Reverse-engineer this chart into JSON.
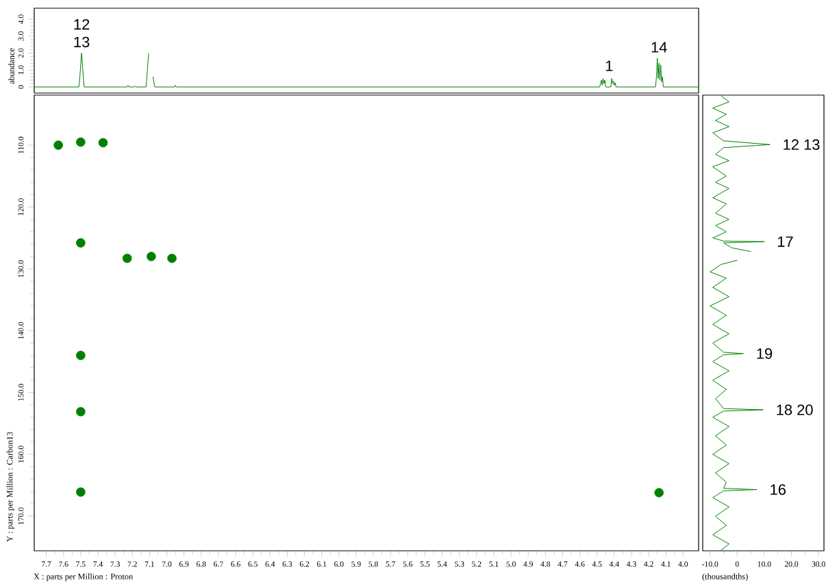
{
  "chart_data": [
    {
      "type": "line",
      "ylabel": "abundance",
      "xlim": [
        7.77,
        3.91
      ],
      "ylim": [
        -0.36,
        4.65
      ],
      "tick_labels": "y",
      "yticks": [
        {
          "value": 0,
          "label": "0"
        },
        {
          "value": 1,
          "label": "1.0"
        },
        {
          "value": 2,
          "label": "2.0"
        },
        {
          "value": 3,
          "label": "3.0"
        },
        {
          "value": 4,
          "label": "4.0"
        }
      ],
      "series": [
        {
          "color": "#008000",
          "x": [
            7.77,
            7.51,
            7.505,
            7.495,
            7.485,
            7.48,
            7.23,
            7.225,
            7.22,
            7.19,
            7.185,
            7.18,
            7.12,
            7.105,
            7.095,
            7.085,
            7.08,
            7.07,
            6.955,
            6.95,
            6.945,
            4.485,
            4.475,
            4.47,
            4.465,
            4.46,
            4.455,
            4.45,
            4.42,
            4.415,
            4.41,
            4.405,
            4.4,
            4.395,
            4.39,
            4.16,
            4.155,
            4.15,
            4.145,
            4.14,
            4.135,
            4.13,
            4.125,
            4.12,
            4.115,
            3.91
          ],
          "values": [
            0,
            0,
            0.6,
            2.0,
            0.6,
            0,
            0,
            0.1,
            0,
            0,
            0.05,
            0,
            0,
            2.0,
            null,
            null,
            0.6,
            0,
            0,
            0.1,
            0,
            0,
            0.4,
            0.1,
            0.5,
            0.2,
            0.4,
            0,
            0,
            0.5,
            0.2,
            0.35,
            0.1,
            0.25,
            0,
            0,
            0.6,
            1.7,
            0.5,
            1.4,
            0.4,
            1.3,
            0.3,
            0.6,
            0,
            0
          ]
        }
      ],
      "annotations": [
        {
          "text": "12",
          "x": 7.495,
          "y": 2.0
        },
        {
          "text": "13",
          "x": 7.495,
          "y": 2.0
        },
        {
          "text": "1",
          "x": 4.43,
          "y": 0.6
        },
        {
          "text": "14",
          "x": 4.14,
          "y": 1.7
        }
      ]
    },
    {
      "type": "scatter",
      "xlabel": "X : parts per Million : Proton",
      "ylabel": "Y : parts per Million : Carbon13",
      "xlim": [
        7.77,
        3.91
      ],
      "ylim": [
        175.6,
        101.9
      ],
      "marker": "circle",
      "xticks": [
        7.7,
        7.6,
        7.5,
        7.4,
        7.3,
        7.2,
        7.1,
        {
          "value": 7.0,
          "label": "7.0"
        },
        6.9,
        6.8,
        6.7,
        6.6,
        6.5,
        6.4,
        6.3,
        6.2,
        6.1,
        {
          "value": 6.0,
          "label": "6.0"
        },
        5.9,
        5.8,
        5.7,
        5.6,
        5.5,
        5.4,
        5.3,
        5.2,
        5.1,
        {
          "value": 5.0,
          "label": "5.0"
        },
        4.9,
        4.8,
        4.7,
        4.6,
        4.5,
        4.4,
        4.3,
        4.2,
        4.1,
        {
          "value": 4.0,
          "label": "4.0"
        }
      ],
      "yticks": [
        {
          "value": 110,
          "label": "110.0"
        },
        {
          "value": 120,
          "label": "120.0"
        },
        {
          "value": 130,
          "label": "130.0"
        },
        {
          "value": 140,
          "label": "140.0"
        },
        {
          "value": 150,
          "label": "150.0"
        },
        {
          "value": 160,
          "label": "160.0"
        },
        {
          "value": 170,
          "label": "170.0"
        }
      ],
      "series": [
        {
          "color": "#008000",
          "x": [
            7.63,
            7.5,
            7.37,
            7.5,
            7.23,
            7.09,
            6.97,
            7.5,
            7.5,
            7.5,
            4.14
          ],
          "values": [
            110.0,
            109.5,
            109.6,
            125.8,
            128.3,
            128.0,
            128.3,
            144.0,
            153.1,
            166.1,
            166.2
          ]
        }
      ]
    },
    {
      "type": "line",
      "xlabel": "(thousandths)",
      "xlim": [
        -12.7,
        32
      ],
      "ylim": [
        175.6,
        101.9
      ],
      "tick_labels": "x",
      "xticks": [
        {
          "value": -10,
          "label": "-10.0"
        },
        {
          "value": 0,
          "label": "0"
        },
        {
          "value": 10,
          "label": "10.0"
        },
        {
          "value": 20,
          "label": "20.0"
        },
        {
          "value": 30,
          "label": "30.0"
        }
      ],
      "series": [
        {
          "color": "#008000",
          "x": [
            -6,
            -3,
            -9,
            -4,
            -8,
            -3,
            -9,
            -5,
            12.1,
            -5,
            -8,
            -3,
            -9,
            -4,
            -8,
            -3,
            -9,
            -4,
            -8,
            -3,
            -8,
            -4,
            -9,
            -5,
            10,
            -5,
            -2,
            5,
            null,
            null,
            0,
            -6,
            -10,
            -4,
            -9,
            -3,
            -10,
            -4,
            -9,
            -3,
            -9,
            -5,
            2.3,
            -5,
            -9,
            -3,
            -9,
            -4,
            -8,
            -5,
            9.6,
            -5,
            -9,
            -3,
            -8,
            -4,
            -9,
            -3,
            -8,
            -4,
            -5,
            7.3,
            -5,
            -9,
            -3,
            -8,
            -4,
            -9,
            -3,
            -6
          ],
          "values": [
            102,
            103,
            104,
            105,
            106,
            107,
            108,
            109.3,
            109.9,
            110.4,
            111.5,
            112.5,
            113.5,
            115,
            116,
            117,
            118.5,
            119.5,
            121,
            122,
            123,
            124,
            125,
            125.5,
            125.6,
            125.8,
            126.6,
            127.2,
            null,
            null,
            128.6,
            129.3,
            130.5,
            131.5,
            133,
            134.5,
            136,
            137.5,
            139,
            140.5,
            142,
            143.5,
            143.7,
            143.9,
            145,
            146.5,
            148,
            149.5,
            151,
            152.6,
            152.8,
            153,
            154,
            155.5,
            157,
            158.5,
            160,
            161.5,
            163,
            164.5,
            165.5,
            165.7,
            165.9,
            167,
            168.5,
            170,
            171.5,
            173,
            174.5,
            175.5
          ]
        }
      ],
      "annotations": [
        {
          "text": "12 13",
          "x": 12.1,
          "y": 109.9
        },
        {
          "text": "17",
          "x": 10,
          "y": 125.6
        },
        {
          "text": "19",
          "x": 2.3,
          "y": 143.7
        },
        {
          "text": "18 20",
          "x": 9.6,
          "y": 152.8
        },
        {
          "text": "16",
          "x": 7.3,
          "y": 165.7
        }
      ]
    }
  ]
}
